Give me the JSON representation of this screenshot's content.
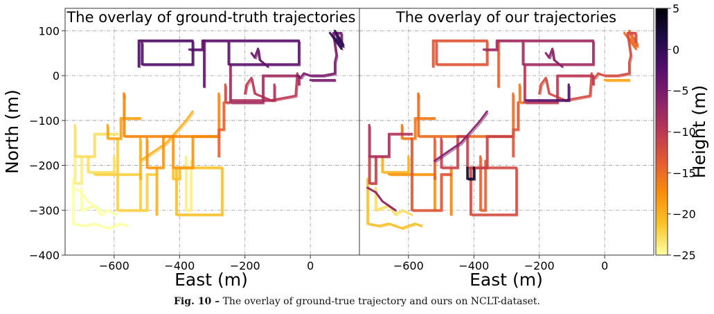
{
  "figure": {
    "caption_label": "Fig. 10 –",
    "caption_text": "The overlay of ground-true trajectory and ours on NCLT-dataset."
  },
  "chart_data": [
    {
      "type": "line",
      "title": "The overlay of ground-truth trajectories",
      "xlabel": "East (m)",
      "ylabel": "North (m)",
      "xlim": [
        -750,
        150
      ],
      "ylim": [
        -400,
        150
      ],
      "xticks": [
        -600,
        -400,
        -200,
        0
      ],
      "yticks": [
        100,
        0,
        -100,
        -200,
        -300,
        -400
      ],
      "grid": true,
      "color_encoding": "height",
      "series": [
        {
          "height": -2,
          "x": [
            -525,
            -525,
            -360,
            -360,
            -515,
            -515
          ],
          "y": [
            20,
            78,
            78,
            25,
            25,
            75
          ]
        },
        {
          "height": -3,
          "x": [
            -370,
            -330,
            -330,
            -250,
            -250,
            -35,
            -35,
            -255
          ],
          "y": [
            58,
            58,
            78,
            78,
            25,
            25,
            78,
            78
          ]
        },
        {
          "height": -3,
          "x": [
            -325,
            -325
          ],
          "y": [
            78,
            -25
          ]
        },
        {
          "height": -4,
          "x": [
            -180,
            -170,
            -160,
            -155,
            -130
          ],
          "y": [
            50,
            40,
            60,
            35,
            20
          ]
        },
        {
          "height": -5,
          "x": [
            -40,
            -30,
            -20,
            0,
            40,
            75,
            75,
            80,
            70,
            95,
            95
          ],
          "y": [
            0,
            -5,
            5,
            0,
            0,
            5,
            30,
            45,
            95,
            95,
            75
          ]
        },
        {
          "height": 0,
          "x": [
            60,
            95,
            75,
            100,
            70,
            100,
            80
          ],
          "y": [
            95,
            60,
            100,
            70,
            85,
            65,
            90
          ]
        },
        {
          "height": -5,
          "x": [
            0,
            75
          ],
          "y": [
            -10,
            -10
          ]
        },
        {
          "height": -8,
          "x": [
            -245,
            -245,
            -145,
            -145,
            -35,
            -35
          ],
          "y": [
            25,
            -60,
            -60,
            0,
            0,
            -20
          ]
        },
        {
          "height": -9,
          "x": [
            -240,
            -110,
            -110
          ],
          "y": [
            -55,
            -55,
            -20
          ]
        },
        {
          "height": -10,
          "x": [
            -200,
            -195,
            -180,
            -170,
            -120,
            -45,
            -40
          ],
          "y": [
            -40,
            -20,
            -5,
            -40,
            -55,
            -45,
            5
          ]
        },
        {
          "height": -12,
          "x": [
            -260,
            -260,
            -250
          ],
          "y": [
            -20,
            -60,
            -60
          ]
        },
        {
          "height": -14,
          "x": [
            -265,
            -265,
            -280,
            -280
          ],
          "y": [
            -60,
            -120,
            -120,
            -180
          ]
        },
        {
          "height": -17,
          "x": [
            -570,
            -570,
            -280,
            -280
          ],
          "y": [
            -40,
            -135,
            -135,
            -40
          ]
        },
        {
          "height": -17,
          "x": [
            -570,
            -570
          ],
          "y": [
            -40,
            -50
          ]
        },
        {
          "height": -18,
          "x": [
            -500,
            -500,
            -450,
            -450,
            -420,
            -420,
            -360,
            -360,
            -285
          ],
          "y": [
            -140,
            -205,
            -205,
            -135,
            -135,
            -205,
            -205,
            -135,
            -135
          ]
        },
        {
          "height": -19,
          "x": [
            -620,
            -620,
            -580,
            -580,
            -520
          ],
          "y": [
            -110,
            -140,
            -140,
            -95,
            -95
          ]
        },
        {
          "height": -20,
          "x": [
            -520,
            -480,
            -440,
            -410,
            -380,
            -360
          ],
          "y": [
            -190,
            -170,
            -150,
            -125,
            -100,
            -80
          ]
        },
        {
          "height": -20,
          "x": [
            -520,
            -520
          ],
          "y": [
            -140,
            -230
          ]
        },
        {
          "height": -20,
          "x": [
            -470,
            -470
          ],
          "y": [
            -205,
            -310
          ]
        },
        {
          "height": -21,
          "x": [
            -410,
            -410,
            -270,
            -270,
            -410
          ],
          "y": [
            -205,
            -310,
            -310,
            -205,
            -205
          ]
        },
        {
          "height": -21,
          "x": [
            -420,
            -420,
            -400,
            -400
          ],
          "y": [
            -205,
            -230,
            -230,
            -205
          ]
        },
        {
          "height": -22,
          "x": [
            -590,
            -590,
            -500,
            -500,
            -470
          ],
          "y": [
            -140,
            -300,
            -300,
            -220,
            -220
          ]
        },
        {
          "height": -22,
          "x": [
            -660,
            -520,
            -520
          ],
          "y": [
            -220,
            -220,
            -300
          ]
        },
        {
          "height": -23,
          "x": [
            -720,
            -720,
            -660,
            -660,
            -590
          ],
          "y": [
            -110,
            -180,
            -180,
            -130,
            -130
          ]
        },
        {
          "height": -23,
          "x": [
            -680,
            -680,
            -600,
            -600
          ],
          "y": [
            -180,
            -215,
            -215,
            -180
          ]
        },
        {
          "height": -24,
          "x": [
            -720,
            -720,
            -700,
            -700
          ],
          "y": [
            -180,
            -240,
            -240,
            -180
          ]
        },
        {
          "height": -24,
          "x": [
            -380,
            -380,
            -365,
            -365
          ],
          "y": [
            -180,
            -300,
            -300,
            -190
          ]
        },
        {
          "height": -25,
          "x": [
            -725,
            -725,
            -690,
            -660,
            -620,
            -580,
            -560
          ],
          "y": [
            -230,
            -330,
            -335,
            -330,
            -340,
            -330,
            -335
          ]
        },
        {
          "height": -25,
          "x": [
            -700,
            -700,
            -660,
            -640,
            -620,
            -590
          ],
          "y": [
            -250,
            -300,
            -290,
            -310,
            -300,
            -310
          ]
        },
        {
          "height": -25,
          "x": [
            -725,
            -700,
            -680,
            -640
          ],
          "y": [
            -250,
            -260,
            -280,
            -300
          ]
        }
      ]
    },
    {
      "type": "line",
      "title": "The overlay of our trajectories",
      "xlabel": "East (m)",
      "ylabel": "",
      "xlim": [
        -750,
        150
      ],
      "ylim": [
        -400,
        150
      ],
      "xticks": [
        -600,
        -400,
        -200,
        0
      ],
      "yticks": [
        100,
        0,
        -100,
        -200,
        -300,
        -400
      ],
      "grid": true,
      "color_encoding": "height",
      "series": [
        {
          "height": -13,
          "x": [
            -525,
            -525,
            -360,
            -360,
            -515,
            -515
          ],
          "y": [
            20,
            78,
            78,
            25,
            25,
            75
          ]
        },
        {
          "height": -8,
          "x": [
            -370,
            -330,
            -330,
            -250,
            -250,
            -35,
            -35,
            -255
          ],
          "y": [
            58,
            58,
            78,
            78,
            25,
            25,
            78,
            78
          ]
        },
        {
          "height": -14,
          "x": [
            -325,
            -325
          ],
          "y": [
            78,
            -25
          ]
        },
        {
          "height": -6,
          "x": [
            -180,
            -170,
            -160,
            -155,
            -130
          ],
          "y": [
            50,
            40,
            60,
            35,
            20
          ]
        },
        {
          "height": -12,
          "x": [
            -40,
            -30,
            -20,
            0,
            40,
            75,
            75,
            80,
            70,
            95,
            95
          ],
          "y": [
            0,
            -5,
            5,
            0,
            0,
            5,
            30,
            45,
            95,
            95,
            75
          ]
        },
        {
          "height": -15,
          "x": [
            60,
            95,
            75,
            100,
            70,
            100,
            80
          ],
          "y": [
            95,
            60,
            100,
            70,
            85,
            65,
            90
          ]
        },
        {
          "height": -19,
          "x": [
            0,
            75
          ],
          "y": [
            -10,
            -10
          ]
        },
        {
          "height": -10,
          "x": [
            -245,
            -245,
            -145,
            -145,
            -35,
            -35
          ],
          "y": [
            25,
            -60,
            -60,
            0,
            0,
            -20
          ]
        },
        {
          "height": -2,
          "x": [
            -240,
            -110,
            -110
          ],
          "y": [
            -55,
            -55,
            -20
          ]
        },
        {
          "height": -12,
          "x": [
            -200,
            -195,
            -180,
            -170,
            -120,
            -45,
            -40
          ],
          "y": [
            -40,
            -20,
            -5,
            -40,
            -55,
            -45,
            5
          ]
        },
        {
          "height": -16,
          "x": [
            -260,
            -260,
            -250
          ],
          "y": [
            -20,
            -60,
            -60
          ]
        },
        {
          "height": -13,
          "x": [
            -265,
            -265,
            -280,
            -280
          ],
          "y": [
            -60,
            -120,
            -120,
            -180
          ]
        },
        {
          "height": -15,
          "x": [
            -570,
            -570,
            -280,
            -280
          ],
          "y": [
            -40,
            -135,
            -135,
            -40
          ]
        },
        {
          "height": -20,
          "x": [
            -570,
            -570
          ],
          "y": [
            -40,
            -50
          ]
        },
        {
          "height": -11,
          "x": [
            -500,
            -500,
            -450,
            -450,
            -420,
            -420,
            -360,
            -360,
            -285
          ],
          "y": [
            -140,
            -205,
            -205,
            -135,
            -135,
            -205,
            -205,
            -135,
            -135
          ]
        },
        {
          "height": -16,
          "x": [
            -620,
            -620,
            -580,
            -580,
            -520
          ],
          "y": [
            -110,
            -140,
            -140,
            -95,
            -95
          ]
        },
        {
          "height": -6,
          "x": [
            -520,
            -480,
            -440,
            -410,
            -380,
            -360
          ],
          "y": [
            -190,
            -170,
            -150,
            -125,
            -100,
            -80
          ]
        },
        {
          "height": -14,
          "x": [
            -520,
            -520
          ],
          "y": [
            -140,
            -230
          ]
        },
        {
          "height": -17,
          "x": [
            -470,
            -470
          ],
          "y": [
            -205,
            -310
          ]
        },
        {
          "height": -12,
          "x": [
            -410,
            -410,
            -270,
            -270,
            -410
          ],
          "y": [
            -205,
            -310,
            -310,
            -205,
            -205
          ]
        },
        {
          "height": 3,
          "x": [
            -420,
            -420,
            -400,
            -400
          ],
          "y": [
            -205,
            -230,
            -230,
            -205
          ]
        },
        {
          "height": -13,
          "x": [
            -590,
            -590,
            -500,
            -500,
            -470
          ],
          "y": [
            -140,
            -300,
            -300,
            -220,
            -220
          ]
        },
        {
          "height": -18,
          "x": [
            -660,
            -520,
            -520
          ],
          "y": [
            -220,
            -220,
            -300
          ]
        },
        {
          "height": -9,
          "x": [
            -720,
            -720,
            -660,
            -660,
            -590
          ],
          "y": [
            -110,
            -180,
            -180,
            -130,
            -130
          ]
        },
        {
          "height": -20,
          "x": [
            -680,
            -680,
            -600,
            -600
          ],
          "y": [
            -180,
            -215,
            -215,
            -180
          ]
        },
        {
          "height": -11,
          "x": [
            -720,
            -720,
            -700,
            -700
          ],
          "y": [
            -180,
            -240,
            -240,
            -180
          ]
        },
        {
          "height": -14,
          "x": [
            -380,
            -380,
            -365,
            -365
          ],
          "y": [
            -180,
            -300,
            -300,
            -190
          ]
        },
        {
          "height": -21,
          "x": [
            -725,
            -725,
            -690,
            -660,
            -620,
            -580,
            -560
          ],
          "y": [
            -230,
            -330,
            -335,
            -330,
            -340,
            -330,
            -335
          ]
        },
        {
          "height": -23,
          "x": [
            -700,
            -700,
            -660,
            -640,
            -620,
            -590
          ],
          "y": [
            -250,
            -300,
            -290,
            -310,
            -300,
            -310
          ]
        },
        {
          "height": -7,
          "x": [
            -725,
            -700,
            -680,
            -640
          ],
          "y": [
            -250,
            -260,
            -280,
            -300
          ]
        }
      ]
    }
  ],
  "colorbar": {
    "label": "Height (m)",
    "range": [
      -25,
      5
    ],
    "ticks": [
      5,
      0,
      -5,
      -10,
      -15,
      -20,
      -25
    ],
    "colormap": "inferno-like",
    "stops": [
      "#fcffa4",
      "#fac42a",
      "#f98e09",
      "#e55c30",
      "#bc3754",
      "#8a226a",
      "#57106e",
      "#1f0c48",
      "#000004"
    ]
  }
}
